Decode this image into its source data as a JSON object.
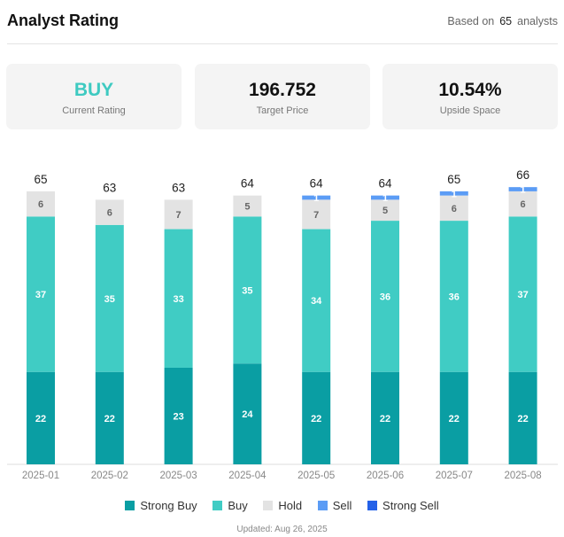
{
  "header": {
    "title": "Analyst Rating",
    "based_prefix": "Based on",
    "based_count": "65",
    "based_suffix": "analysts"
  },
  "cards": [
    {
      "value": "BUY",
      "label": "Current Rating"
    },
    {
      "value": "196.752",
      "label": "Target Price"
    },
    {
      "value": "10.54%",
      "label": "Upside Space"
    }
  ],
  "colors": {
    "strong_buy": "#0a9ea3",
    "buy": "#40ccc4",
    "hold": "#e3e3e3",
    "sell": "#5b9cf5",
    "strong_sell": "#2461e8",
    "accent": "#3ecac1"
  },
  "chart_data": {
    "type": "bar",
    "stacked": true,
    "categories": [
      "2025-01",
      "2025-02",
      "2025-03",
      "2025-04",
      "2025-05",
      "2025-06",
      "2025-07",
      "2025-08"
    ],
    "totals": [
      65,
      63,
      63,
      64,
      64,
      64,
      65,
      66
    ],
    "series": [
      {
        "name": "Strong Buy",
        "key": "strong_buy",
        "values": [
          22,
          22,
          23,
          24,
          22,
          22,
          22,
          22
        ]
      },
      {
        "name": "Buy",
        "key": "buy",
        "values": [
          37,
          35,
          33,
          35,
          34,
          36,
          36,
          37
        ]
      },
      {
        "name": "Hold",
        "key": "hold",
        "values": [
          6,
          6,
          7,
          5,
          7,
          5,
          6,
          6
        ]
      },
      {
        "name": "Sell",
        "key": "sell",
        "values": [
          0,
          0,
          0,
          0,
          1,
          1,
          1,
          1
        ]
      },
      {
        "name": "Strong Sell",
        "key": "strong_sell",
        "values": [
          0,
          0,
          0,
          0,
          0,
          0,
          0,
          0
        ]
      }
    ],
    "legend_position": "bottom",
    "grid": false
  },
  "footer": {
    "updated": "Updated: Aug 26, 2025"
  }
}
